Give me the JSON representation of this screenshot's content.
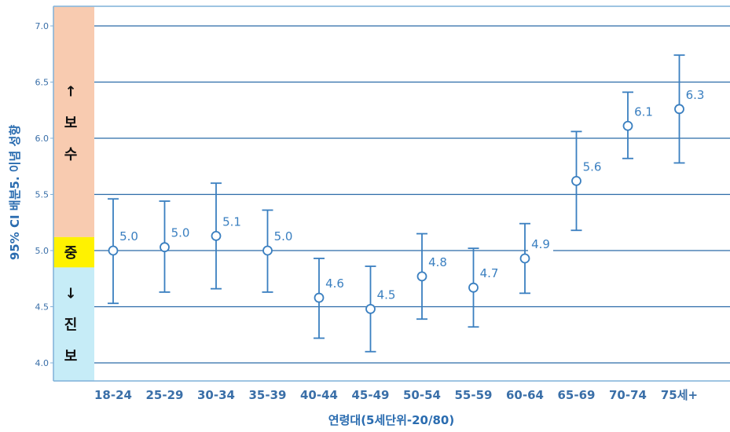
{
  "chart_data": {
    "type": "scatter",
    "title": "",
    "xlabel": "연령대(5세단위-20/80)",
    "ylabel": "95% CI 배분5. 이념 성향",
    "ylim": [
      4.0,
      7.0
    ],
    "yticks": [
      "4.0",
      "4.5",
      "5.0",
      "5.5",
      "6.0",
      "6.5",
      "7.0"
    ],
    "grid": true,
    "categories": [
      "18-24",
      "25-29",
      "30-34",
      "35-39",
      "40-44",
      "45-49",
      "50-54",
      "55-59",
      "60-64",
      "65-69",
      "70-74",
      "75세+"
    ],
    "series": [
      {
        "values": [
          5.0,
          5.03,
          5.13,
          5.0,
          4.58,
          4.48,
          4.77,
          4.67,
          4.93,
          5.62,
          6.11,
          6.26
        ],
        "labels": [
          "5.0",
          "5.0",
          "5.1",
          "5.0",
          "4.6",
          "4.5",
          "4.8",
          "4.7",
          "4.9",
          "5.6",
          "6.1",
          "6.3"
        ],
        "ci_low": [
          4.53,
          4.63,
          4.66,
          4.63,
          4.22,
          4.1,
          4.39,
          4.32,
          4.62,
          5.18,
          5.82,
          5.78
        ],
        "ci_high": [
          5.46,
          5.44,
          5.6,
          5.36,
          4.93,
          4.86,
          5.15,
          5.02,
          5.24,
          6.06,
          6.41,
          6.74
        ]
      }
    ],
    "bands": [
      {
        "name": "conservative",
        "from": 5.12,
        "to": 7.17,
        "color": "#f8cbb0",
        "text": [
          "↑",
          "보",
          "수"
        ]
      },
      {
        "name": "center",
        "from": 4.85,
        "to": 5.12,
        "color": "#fff200",
        "text": [
          "중"
        ]
      },
      {
        "name": "progressive",
        "from": 3.83,
        "to": 4.85,
        "color": "#c6ecf7",
        "text": [
          "↓",
          "진",
          "보"
        ]
      }
    ],
    "colors": {
      "accent": "#3a7fc0",
      "grid": "#2a6aa8",
      "frame": "#7fb0d8"
    }
  }
}
